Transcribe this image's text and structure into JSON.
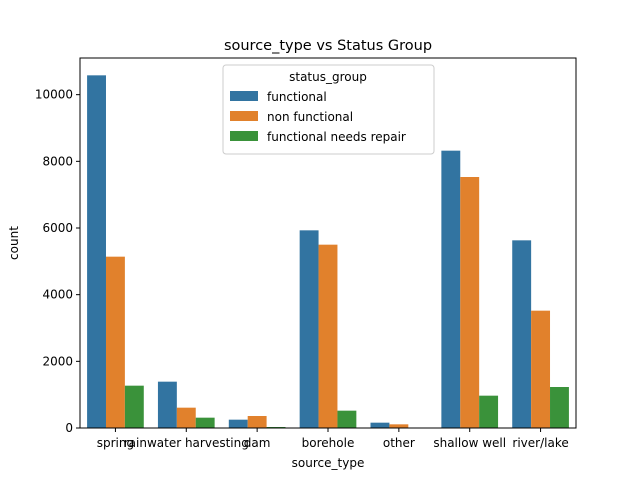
{
  "chart_data": {
    "type": "bar",
    "title": "source_type vs Status Group",
    "xlabel": "source_type",
    "ylabel": "count",
    "ylim": [
      0,
      11100
    ],
    "yticks": [
      0,
      2000,
      4000,
      6000,
      8000,
      10000
    ],
    "ytick_labels": [
      "0",
      "2000",
      "4000",
      "6000",
      "8000",
      "10000"
    ],
    "categories": [
      "spring",
      "rainwater harvesting",
      "dam",
      "borehole",
      "other",
      "shallow well",
      "river/lake"
    ],
    "legend_title": "status_group",
    "legend_position": "upper-center",
    "series": [
      {
        "name": "functional",
        "color": "#3274a1",
        "values": [
          10580,
          1390,
          250,
          5930,
          160,
          8320,
          5630
        ]
      },
      {
        "name": "non functional",
        "color": "#e1812c",
        "values": [
          5140,
          610,
          360,
          5500,
          110,
          7530,
          3520
        ]
      },
      {
        "name": "functional needs repair",
        "color": "#3a923a",
        "values": [
          1270,
          310,
          30,
          520,
          10,
          970,
          1230
        ]
      }
    ]
  }
}
